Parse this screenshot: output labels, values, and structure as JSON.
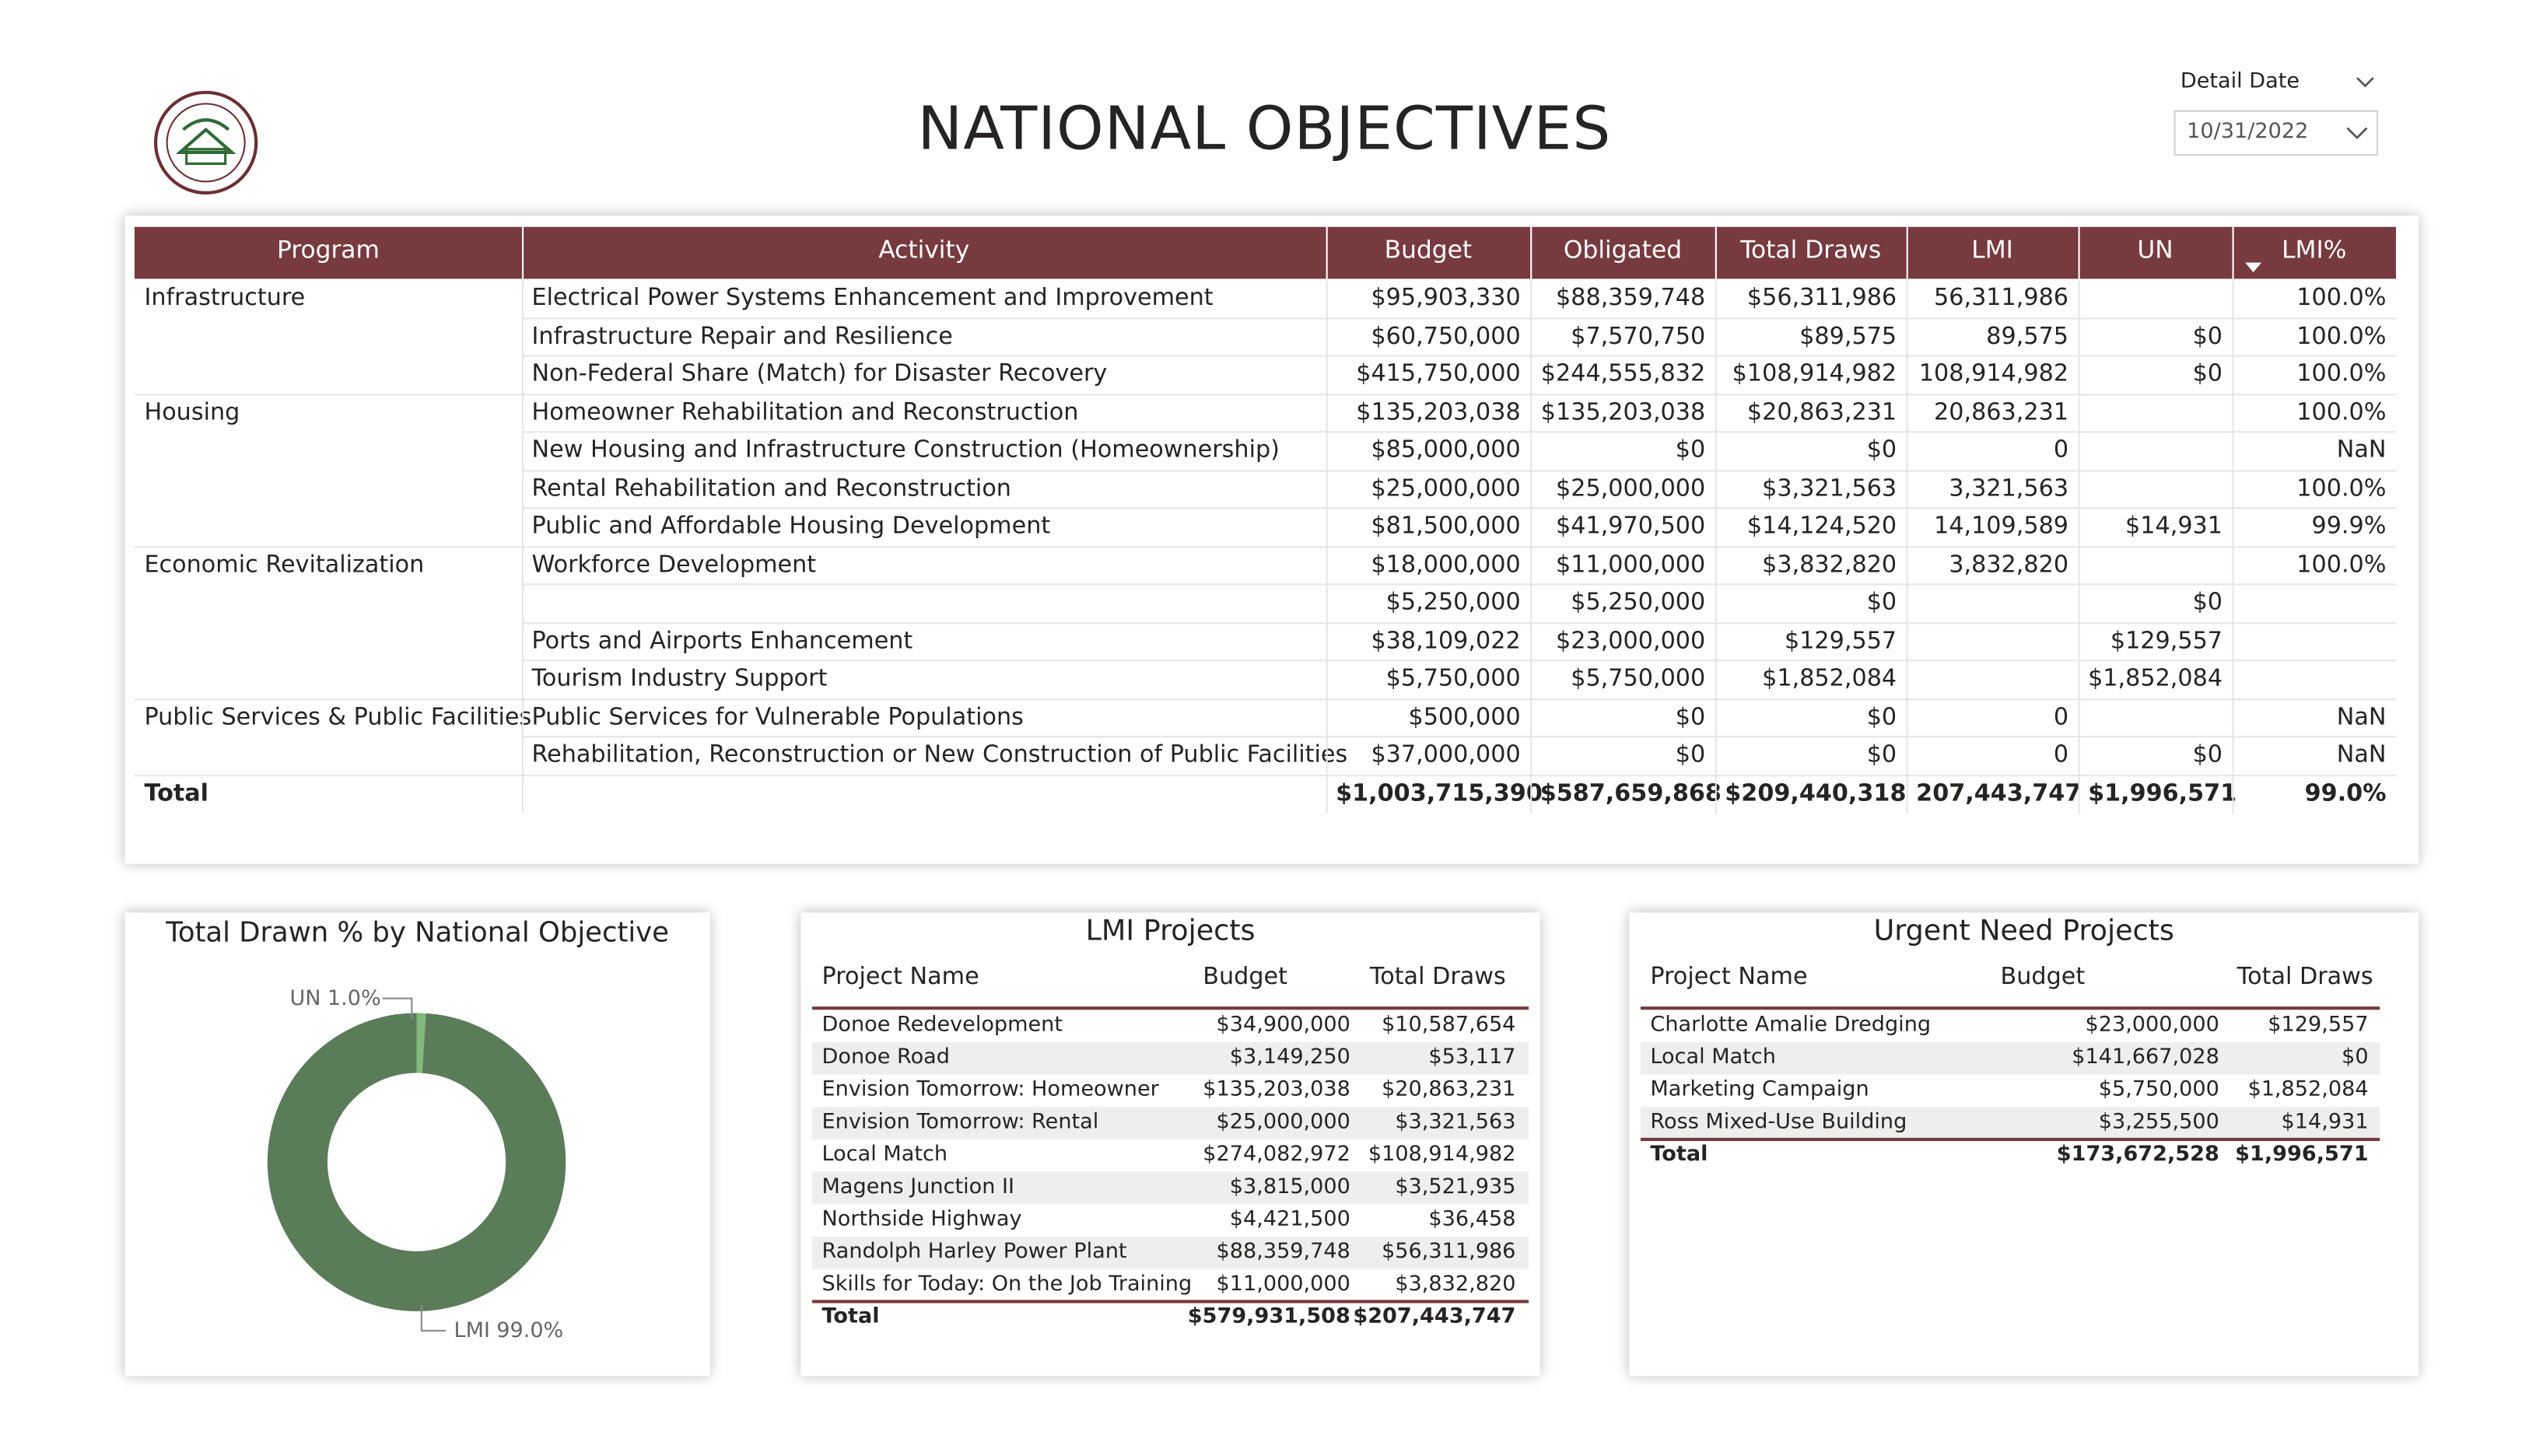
{
  "header": {
    "title": "NATIONAL OBJECTIVES"
  },
  "slicer": {
    "label": "Detail Date",
    "value": "10/31/2022"
  },
  "table": {
    "columns": [
      "Program",
      "Activity",
      "Budget",
      "Obligated",
      "Total Draws",
      "LMI",
      "UN",
      "LMI%"
    ],
    "rows": [
      [
        "Infrastructure",
        "Electrical Power Systems Enhancement and Improvement",
        "$95,903,330",
        "$88,359,748",
        "$56,311,986",
        "56,311,986",
        null,
        "100.0%"
      ],
      [
        null,
        "Infrastructure Repair and Resilience",
        "$60,750,000",
        "$7,570,750",
        "$89,575",
        "89,575",
        "$0",
        "100.0%"
      ],
      [
        null,
        "Non-Federal Share (Match) for Disaster Recovery",
        "$415,750,000",
        "$244,555,832",
        "$108,914,982",
        "108,914,982",
        "$0",
        "100.0%"
      ],
      [
        "Housing",
        "Homeowner Rehabilitation and Reconstruction",
        "$135,203,038",
        "$135,203,038",
        "$20,863,231",
        "20,863,231",
        null,
        "100.0%"
      ],
      [
        null,
        "New Housing and Infrastructure Construction (Homeownership)",
        "$85,000,000",
        "$0",
        "$0",
        "0",
        null,
        "NaN"
      ],
      [
        null,
        "Rental Rehabilitation and Reconstruction",
        "$25,000,000",
        "$25,000,000",
        "$3,321,563",
        "3,321,563",
        null,
        "100.0%"
      ],
      [
        null,
        "Public and Affordable Housing Development",
        "$81,500,000",
        "$41,970,500",
        "$14,124,520",
        "14,109,589",
        "$14,931",
        "99.9%"
      ],
      [
        "Economic Revitalization",
        "Workforce Development",
        "$18,000,000",
        "$11,000,000",
        "$3,832,820",
        "3,832,820",
        null,
        "100.0%"
      ],
      [
        null,
        null,
        "$5,250,000",
        "$5,250,000",
        "$0",
        null,
        "$0",
        null
      ],
      [
        null,
        "Ports and Airports Enhancement",
        "$38,109,022",
        "$23,000,000",
        "$129,557",
        null,
        "$129,557",
        null
      ],
      [
        null,
        "Tourism Industry Support",
        "$5,750,000",
        "$5,750,000",
        "$1,852,084",
        null,
        "$1,852,084",
        null
      ],
      [
        "Public Services & Public Facilities",
        "Public Services for Vulnerable Populations",
        "$500,000",
        "$0",
        "$0",
        "0",
        null,
        "NaN"
      ],
      [
        null,
        "Rehabilitation, Reconstruction or New Construction of Public Facilities",
        "$37,000,000",
        "$0",
        "$0",
        "0",
        "$0",
        "NaN"
      ]
    ],
    "total": [
      "Total",
      null,
      "$1,003,715,390",
      "$587,659,868",
      "$209,440,318",
      "207,443,747",
      "$1,996,571",
      "99.0%"
    ]
  },
  "chart_data": {
    "type": "donut",
    "title": "Total Drawn % by National Objective",
    "categories": [
      "UN",
      "LMI"
    ],
    "values": [
      1.0,
      99.0
    ],
    "value_labels": [
      "1.0%",
      "99.0%"
    ],
    "colors": [
      "#82b97c",
      "#5b7c59"
    ]
  },
  "lmi_projects": {
    "title": "LMI Projects",
    "columns": [
      "Project Name",
      "Budget",
      "Total Draws"
    ],
    "rows": [
      [
        "Donoe Redevelopment",
        "$34,900,000",
        "$10,587,654"
      ],
      [
        "Donoe Road",
        "$3,149,250",
        "$53,117"
      ],
      [
        "Envision Tomorrow: Homeowner",
        "$135,203,038",
        "$20,863,231"
      ],
      [
        "Envision Tomorrow: Rental",
        "$25,000,000",
        "$3,321,563"
      ],
      [
        "Local Match",
        "$274,082,972",
        "$108,914,982"
      ],
      [
        "Magens Junction II",
        "$3,815,000",
        "$3,521,935"
      ],
      [
        "Northside Highway",
        "$4,421,500",
        "$36,458"
      ],
      [
        "Randolph Harley Power Plant",
        "$88,359,748",
        "$56,311,986"
      ],
      [
        "Skills for Today: On the Job Training",
        "$11,000,000",
        "$3,832,820"
      ]
    ],
    "total": [
      "Total",
      "$579,931,508",
      "$207,443,747"
    ]
  },
  "urgent_need_projects": {
    "title": "Urgent Need Projects",
    "columns": [
      "Project Name",
      "Budget",
      "Total Draws"
    ],
    "rows": [
      [
        "Charlotte Amalie Dredging",
        "$23,000,000",
        "$129,557"
      ],
      [
        "Local Match",
        "$141,667,028",
        "$0"
      ],
      [
        "Marketing Campaign",
        "$5,750,000",
        "$1,852,084"
      ],
      [
        "Ross Mixed-Use Building",
        "$3,255,500",
        "$14,931"
      ]
    ],
    "total": [
      "Total",
      "$173,672,528",
      "$1,996,571"
    ]
  }
}
